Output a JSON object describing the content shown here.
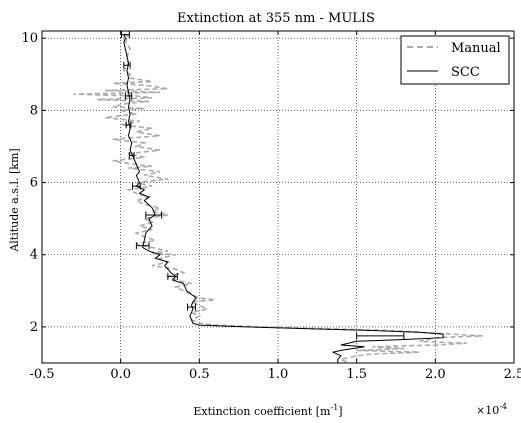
{
  "chart_data": {
    "type": "line",
    "title": "Extinction at 355 nm - MULIS",
    "xlabel": "Extinction coefficient [m",
    "xlabel_unit_sup": "-1",
    "xlabel_close": "]",
    "ylabel": "Altitude a.s.l. [km]",
    "x_multiplier": "×10",
    "x_multiplier_exp": "-4",
    "xlim": [
      -0.5,
      2.5
    ],
    "ylim": [
      1.0,
      10.2
    ],
    "xticks": [
      -0.5,
      0.0,
      0.5,
      1.0,
      1.5,
      2.0,
      2.5
    ],
    "xtick_labels": [
      "-0.5",
      "0.0",
      "0.5",
      "1.0",
      "1.5",
      "2.0",
      "2.5"
    ],
    "yticks": [
      2,
      4,
      6,
      8,
      10
    ],
    "ytick_labels": [
      "2",
      "4",
      "6",
      "8",
      "10"
    ],
    "grid": true,
    "legend_position": "top-right",
    "series": [
      {
        "name": "Manual",
        "style": "dashed",
        "color": "#aaaaaa",
        "points": [
          [
            0.02,
            10.1
          ],
          [
            0.05,
            10.05
          ],
          [
            0.03,
            9.9
          ],
          [
            0.06,
            9.7
          ],
          [
            0.04,
            9.5
          ],
          [
            0.05,
            9.3
          ],
          [
            0.02,
            9.1
          ],
          [
            0.06,
            9.0
          ],
          [
            0.05,
            8.9
          ],
          [
            0.2,
            8.8
          ],
          [
            -0.05,
            8.75
          ],
          [
            0.15,
            8.7
          ],
          [
            0.3,
            8.6
          ],
          [
            -0.1,
            8.55
          ],
          [
            0.25,
            8.5
          ],
          [
            -0.3,
            8.45
          ],
          [
            0.1,
            8.4
          ],
          [
            0.2,
            8.35
          ],
          [
            -0.15,
            8.3
          ],
          [
            0.18,
            8.25
          ],
          [
            0.05,
            8.2
          ],
          [
            -0.05,
            8.1
          ],
          [
            0.15,
            8.05
          ],
          [
            0.0,
            8.0
          ],
          [
            0.1,
            7.9
          ],
          [
            -0.1,
            7.8
          ],
          [
            0.12,
            7.7
          ],
          [
            0.0,
            7.6
          ],
          [
            0.2,
            7.5
          ],
          [
            0.1,
            7.4
          ],
          [
            0.25,
            7.3
          ],
          [
            -0.05,
            7.2
          ],
          [
            0.15,
            7.1
          ],
          [
            0.1,
            7.0
          ],
          [
            0.25,
            6.9
          ],
          [
            0.05,
            6.8
          ],
          [
            0.15,
            6.7
          ],
          [
            -0.05,
            6.6
          ],
          [
            0.1,
            6.5
          ],
          [
            0.2,
            6.45
          ],
          [
            0.05,
            6.4
          ],
          [
            0.25,
            6.3
          ],
          [
            0.15,
            6.2
          ],
          [
            0.3,
            6.1
          ],
          [
            0.1,
            6.0
          ],
          [
            0.2,
            5.9
          ],
          [
            0.05,
            5.8
          ],
          [
            0.1,
            5.7
          ],
          [
            0.18,
            5.6
          ],
          [
            0.1,
            5.5
          ],
          [
            0.15,
            5.4
          ],
          [
            0.25,
            5.3
          ],
          [
            0.2,
            5.2
          ],
          [
            0.3,
            5.1
          ],
          [
            0.15,
            5.0
          ],
          [
            0.2,
            4.9
          ],
          [
            0.12,
            4.8
          ],
          [
            0.2,
            4.7
          ],
          [
            0.1,
            4.6
          ],
          [
            0.15,
            4.5
          ],
          [
            0.22,
            4.4
          ],
          [
            0.1,
            4.3
          ],
          [
            0.2,
            4.2
          ],
          [
            0.3,
            4.1
          ],
          [
            0.2,
            4.05
          ],
          [
            0.35,
            4.0
          ],
          [
            0.25,
            3.9
          ],
          [
            0.3,
            3.8
          ],
          [
            0.2,
            3.7
          ],
          [
            0.35,
            3.6
          ],
          [
            0.4,
            3.5
          ],
          [
            0.3,
            3.4
          ],
          [
            0.35,
            3.3
          ],
          [
            0.45,
            3.2
          ],
          [
            0.35,
            3.1
          ],
          [
            0.4,
            3.0
          ],
          [
            0.45,
            2.9
          ],
          [
            0.5,
            2.8
          ],
          [
            0.6,
            2.75
          ],
          [
            0.45,
            2.7
          ],
          [
            0.5,
            2.6
          ],
          [
            0.55,
            2.5
          ],
          [
            0.45,
            2.4
          ],
          [
            0.5,
            2.3
          ],
          [
            0.45,
            2.2
          ],
          [
            0.5,
            2.1
          ],
          [
            0.6,
            2.05
          ],
          [
            0.9,
            2.0
          ],
          [
            1.3,
            1.95
          ],
          [
            1.7,
            1.9
          ],
          [
            1.9,
            1.85
          ],
          [
            2.1,
            1.8
          ],
          [
            2.3,
            1.75
          ],
          [
            2.0,
            1.7
          ],
          [
            1.9,
            1.6
          ],
          [
            2.2,
            1.55
          ],
          [
            2.0,
            1.5
          ],
          [
            1.6,
            1.45
          ],
          [
            1.8,
            1.4
          ],
          [
            1.5,
            1.35
          ],
          [
            1.9,
            1.3
          ],
          [
            1.6,
            1.25
          ],
          [
            1.5,
            1.2
          ],
          [
            1.4,
            1.1
          ],
          [
            1.45,
            1.0
          ]
        ]
      },
      {
        "name": "SCC",
        "style": "solid",
        "color": "#000000",
        "points": [
          [
            0.02,
            10.1
          ],
          [
            0.03,
            10.0
          ],
          [
            0.02,
            9.9
          ],
          [
            0.03,
            9.7
          ],
          [
            0.04,
            9.5
          ],
          [
            0.05,
            9.3
          ],
          [
            0.04,
            9.1
          ],
          [
            0.05,
            8.9
          ],
          [
            0.04,
            8.7
          ],
          [
            0.05,
            8.5
          ],
          [
            0.06,
            8.3
          ],
          [
            0.05,
            8.1
          ],
          [
            0.06,
            7.9
          ],
          [
            0.05,
            7.7
          ],
          [
            0.06,
            7.5
          ],
          [
            0.05,
            7.3
          ],
          [
            0.07,
            7.1
          ],
          [
            0.06,
            6.9
          ],
          [
            0.08,
            6.7
          ],
          [
            0.1,
            6.5
          ],
          [
            0.12,
            6.3
          ],
          [
            0.1,
            6.2
          ],
          [
            0.12,
            6.0
          ],
          [
            0.1,
            5.9
          ],
          [
            0.15,
            5.8
          ],
          [
            0.12,
            5.7
          ],
          [
            0.18,
            5.6
          ],
          [
            0.15,
            5.5
          ],
          [
            0.2,
            5.3
          ],
          [
            0.22,
            5.1
          ],
          [
            0.18,
            5.0
          ],
          [
            0.2,
            4.8
          ],
          [
            0.16,
            4.6
          ],
          [
            0.15,
            4.4
          ],
          [
            0.14,
            4.2
          ],
          [
            0.18,
            4.1
          ],
          [
            0.25,
            4.0
          ],
          [
            0.22,
            3.9
          ],
          [
            0.3,
            3.8
          ],
          [
            0.28,
            3.7
          ],
          [
            0.32,
            3.5
          ],
          [
            0.35,
            3.4
          ],
          [
            0.33,
            3.3
          ],
          [
            0.4,
            3.2
          ],
          [
            0.42,
            3.0
          ],
          [
            0.45,
            2.9
          ],
          [
            0.48,
            2.8
          ],
          [
            0.46,
            2.7
          ],
          [
            0.45,
            2.6
          ],
          [
            0.46,
            2.5
          ],
          [
            0.44,
            2.3
          ],
          [
            0.46,
            2.1
          ],
          [
            0.5,
            2.05
          ],
          [
            0.8,
            2.0
          ],
          [
            1.2,
            1.95
          ],
          [
            1.6,
            1.9
          ],
          [
            1.9,
            1.85
          ],
          [
            2.05,
            1.8
          ],
          [
            2.05,
            1.7
          ],
          [
            1.8,
            1.65
          ],
          [
            1.5,
            1.6
          ],
          [
            1.4,
            1.5
          ],
          [
            1.55,
            1.45
          ],
          [
            1.4,
            1.35
          ],
          [
            1.35,
            1.3
          ],
          [
            1.4,
            1.2
          ],
          [
            1.38,
            1.1
          ],
          [
            1.38,
            1.0
          ]
        ]
      }
    ],
    "error_bars": [
      {
        "y": 10.1,
        "x": 0.03,
        "err": 0.025
      },
      {
        "y": 9.25,
        "x": 0.04,
        "err": 0.02
      },
      {
        "y": 8.4,
        "x": 0.05,
        "err": 0.02
      },
      {
        "y": 7.6,
        "x": 0.05,
        "err": 0.015
      },
      {
        "y": 6.75,
        "x": 0.07,
        "err": 0.015
      },
      {
        "y": 5.9,
        "x": 0.1,
        "err": 0.025
      },
      {
        "y": 5.1,
        "x": 0.21,
        "err": 0.05
      },
      {
        "y": 4.25,
        "x": 0.14,
        "err": 0.04
      },
      {
        "y": 3.4,
        "x": 0.33,
        "err": 0.03
      },
      {
        "y": 2.55,
        "x": 0.45,
        "err": 0.025
      },
      {
        "y": 1.75,
        "x": 1.65,
        "err": 0.15
      }
    ]
  }
}
